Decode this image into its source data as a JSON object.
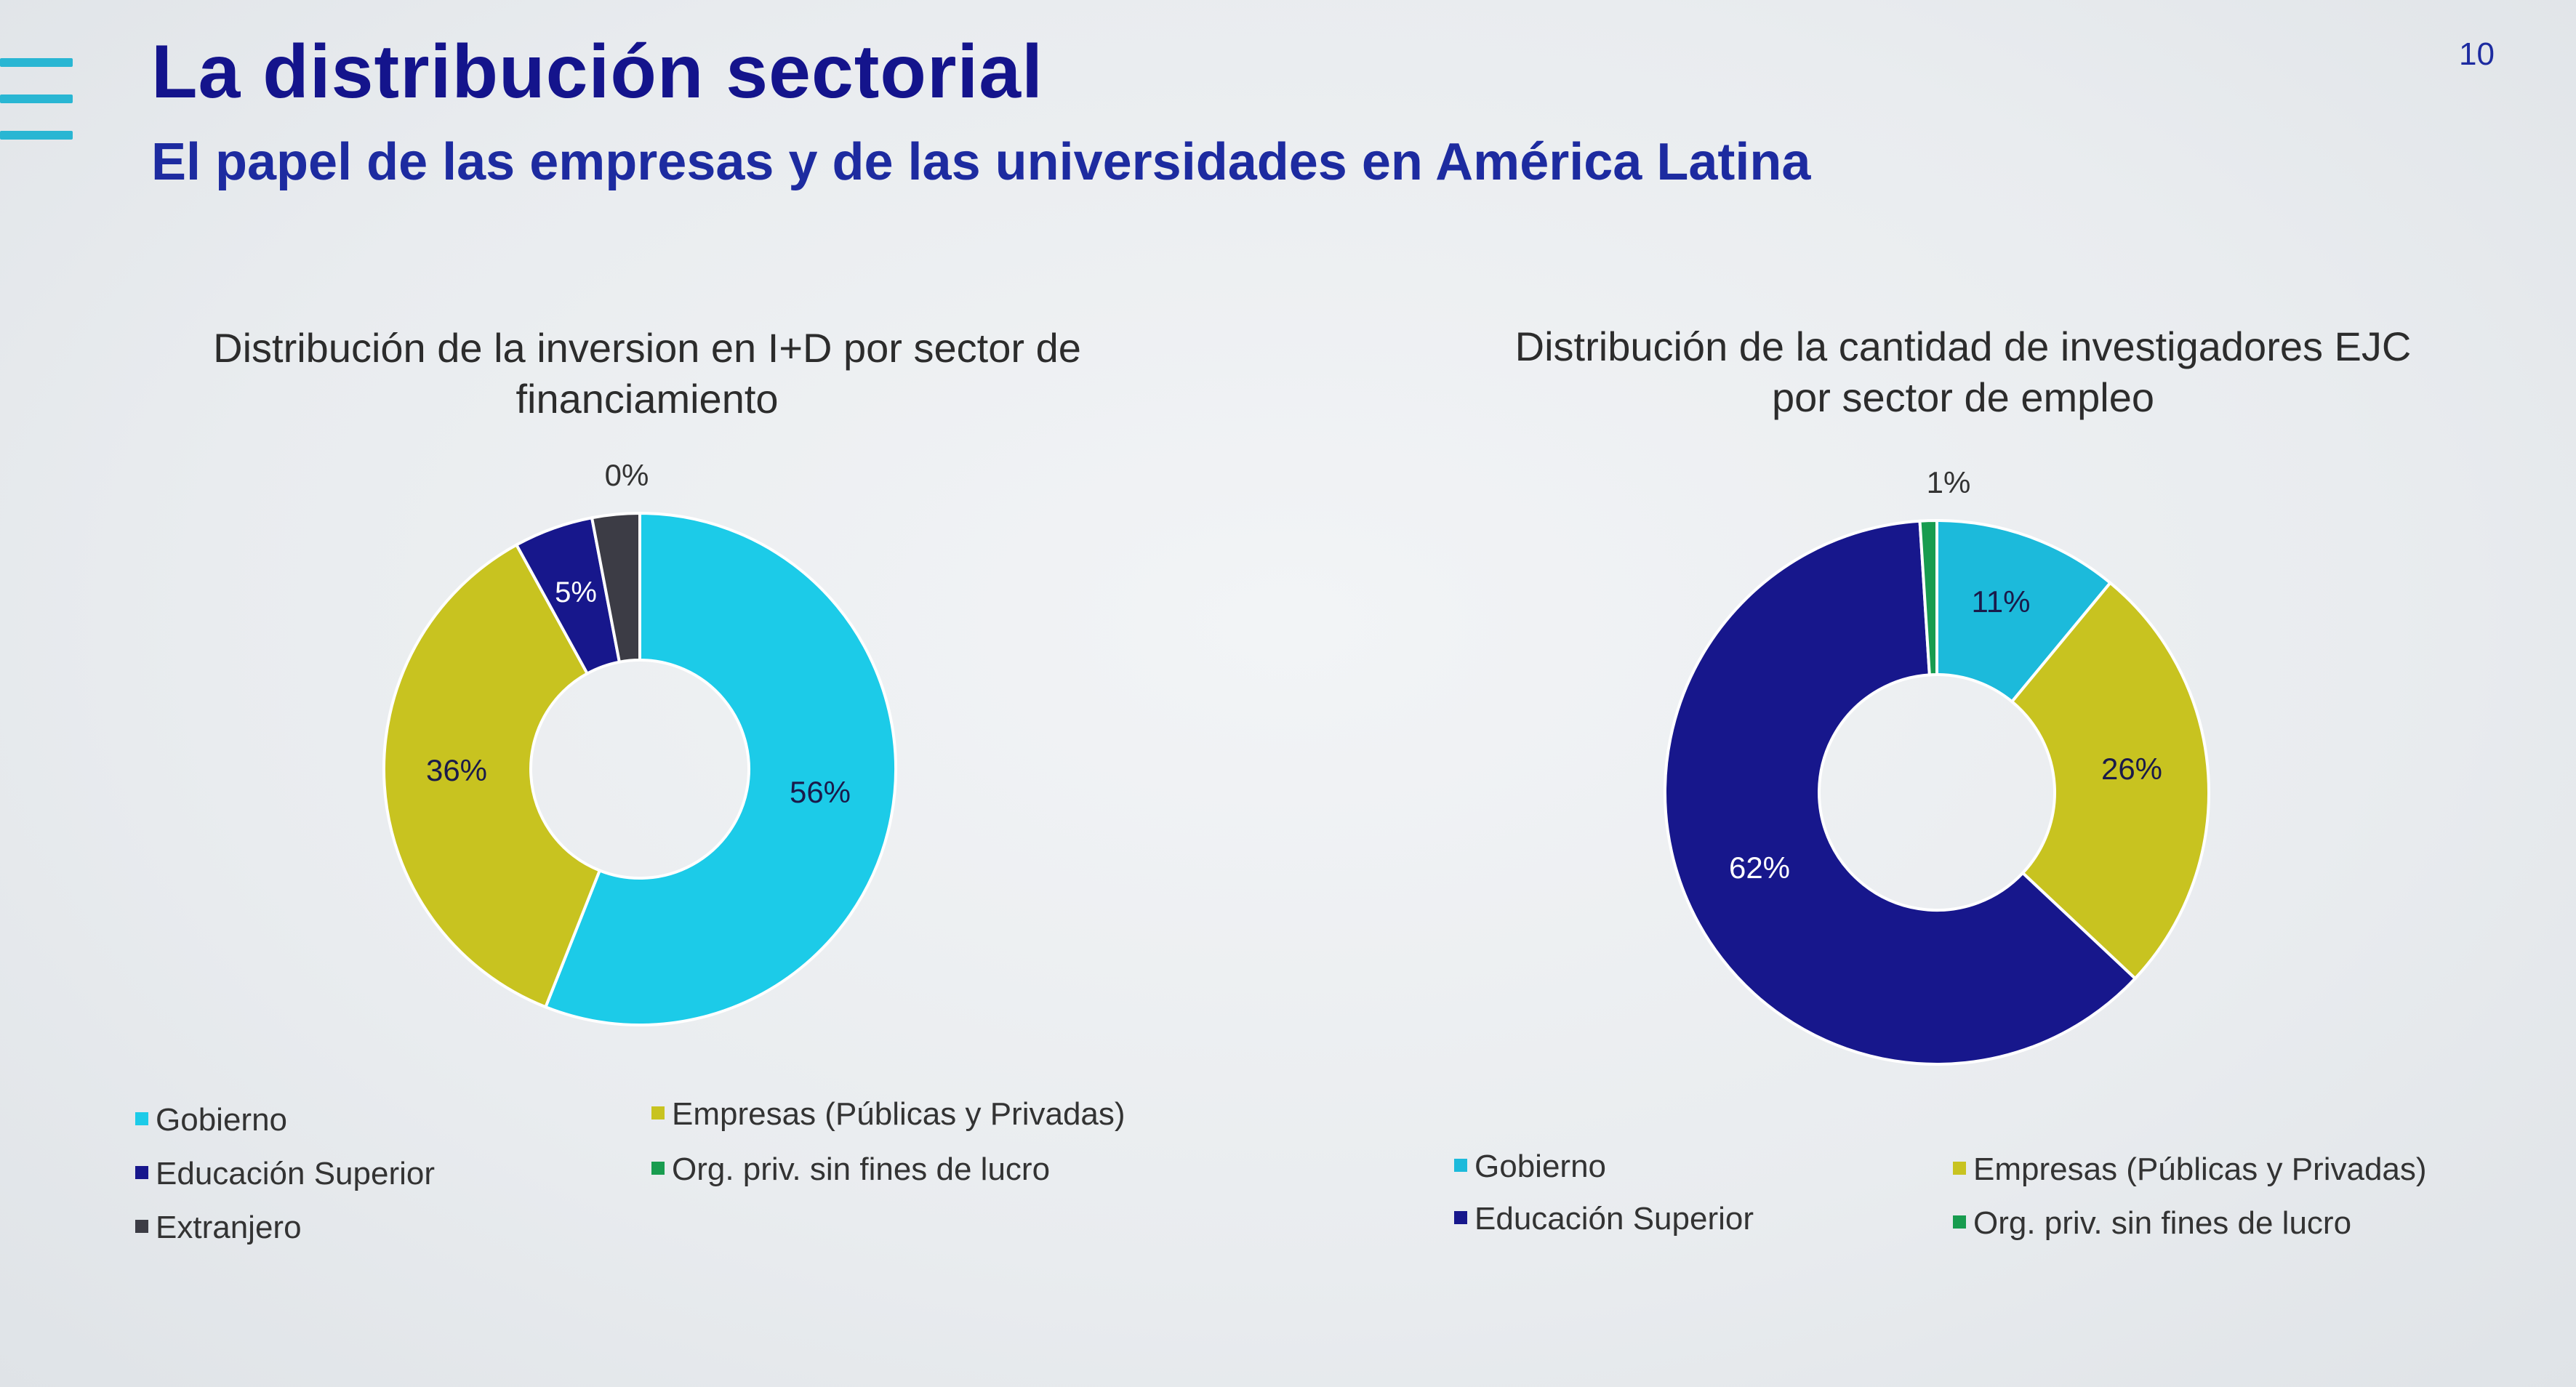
{
  "slide": {
    "title": "La distribución sectorial",
    "subtitle": "El papel de las empresas y de las universidades en América Latina",
    "page_number": "10"
  },
  "chart_data": [
    {
      "type": "pie",
      "donut": true,
      "title_lines": [
        "Distribución de la inversion en I+D por sector de",
        "financiamiento"
      ],
      "slices": [
        {
          "label": "Gobierno",
          "value": 56,
          "display": "56%",
          "color": "#1ccbe8"
        },
        {
          "label": "Empresas (Públicas y Privadas)",
          "value": 36,
          "display": "36%",
          "color": "#c8c320"
        },
        {
          "label": "Educación Superior",
          "value": 5,
          "display": "5%",
          "color": "#17178c"
        },
        {
          "label": "Org. priv. sin fines de lucro",
          "value": 0,
          "display": "0%",
          "color": "#189c4f"
        },
        {
          "label": "Extranjero",
          "value": 3,
          "display": "",
          "color": "#3c3c45"
        }
      ],
      "legend": [
        "Gobierno",
        "Empresas (Públicas y Privadas)",
        "Educación Superior",
        "Org. priv. sin fines de lucro",
        "Extranjero"
      ],
      "legend_position": "bottom"
    },
    {
      "type": "pie",
      "donut": true,
      "title_lines": [
        "Distribución de la cantidad de investigadores EJC",
        "por sector de empleo"
      ],
      "slices": [
        {
          "label": "Gobierno",
          "value": 11,
          "display": "11%",
          "color": "#1cbadb"
        },
        {
          "label": "Empresas (Públicas y Privadas)",
          "value": 26,
          "display": "26%",
          "color": "#c8c320"
        },
        {
          "label": "Educación Superior",
          "value": 62,
          "display": "62%",
          "color": "#17178c"
        },
        {
          "label": "Org. priv. sin fines de lucro",
          "value": 1,
          "display": "1%",
          "color": "#189c4f"
        }
      ],
      "legend": [
        "Gobierno",
        "Empresas (Públicas y Privadas)",
        "Educación Superior",
        "Org. priv. sin fines de lucro"
      ],
      "legend_position": "bottom"
    }
  ]
}
